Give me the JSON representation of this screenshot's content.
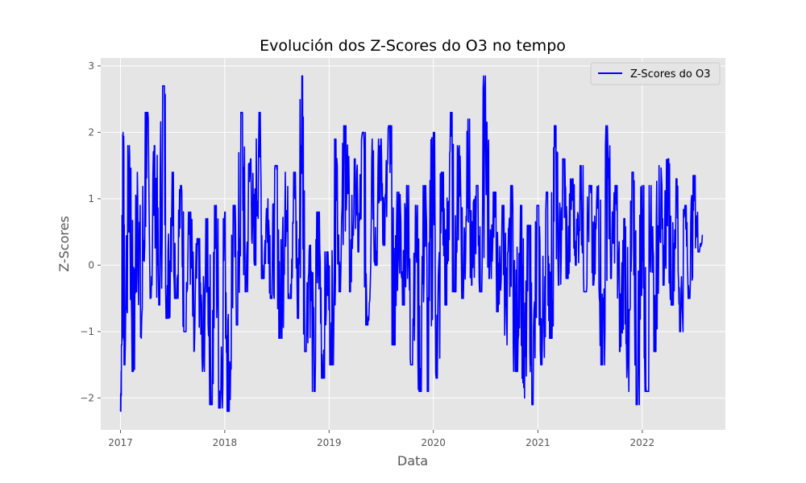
{
  "chart_data": {
    "type": "line",
    "title": "Evolución dos Z-Scores do O3 no tempo",
    "xlabel": "Data",
    "ylabel": "Z-Scores",
    "x_ticks": [
      "2017",
      "2018",
      "2019",
      "2020",
      "2021",
      "2022"
    ],
    "y_ticks": [
      "−2",
      "−1",
      "0",
      "1",
      "2",
      "3"
    ],
    "xlim": [
      "2016-10-24",
      "2022-10-19"
    ],
    "ylim": [
      -2.48,
      3.12
    ],
    "grid": true,
    "legend_position": "top-right",
    "series": [
      {
        "name": "Z-Scores do O3",
        "color": "#0000ff",
        "x_start": "2017-01-01",
        "x_end": "2022-08-01",
        "frequency": "daily (approximate envelope shown)",
        "points": [
          [
            "2017-01-01",
            -2.2
          ],
          [
            "2017-01-05",
            -1.2
          ],
          [
            "2017-01-10",
            2.0
          ],
          [
            "2017-01-15",
            -1.5
          ],
          [
            "2017-02-01",
            1.8
          ],
          [
            "2017-02-15",
            -1.6
          ],
          [
            "2017-03-01",
            1.4
          ],
          [
            "2017-03-15",
            -1.1
          ],
          [
            "2017-04-01",
            2.3
          ],
          [
            "2017-04-15",
            -0.5
          ],
          [
            "2017-05-01",
            1.8
          ],
          [
            "2017-05-15",
            -0.6
          ],
          [
            "2017-06-01",
            2.7
          ],
          [
            "2017-06-15",
            -0.8
          ],
          [
            "2017-07-01",
            1.4
          ],
          [
            "2017-07-15",
            -0.5
          ],
          [
            "2017-08-01",
            1.2
          ],
          [
            "2017-08-15",
            -1.0
          ],
          [
            "2017-09-01",
            0.8
          ],
          [
            "2017-09-15",
            -1.3
          ],
          [
            "2017-10-01",
            0.4
          ],
          [
            "2017-10-15",
            -1.6
          ],
          [
            "2017-11-01",
            0.7
          ],
          [
            "2017-11-15",
            -2.1
          ],
          [
            "2017-12-01",
            0.9
          ],
          [
            "2017-12-15",
            -2.15
          ],
          [
            "2018-01-01",
            0.8
          ],
          [
            "2018-01-15",
            -2.2
          ],
          [
            "2018-02-01",
            0.9
          ],
          [
            "2018-02-15",
            -0.9
          ],
          [
            "2018-03-01",
            2.3
          ],
          [
            "2018-03-15",
            -0.4
          ],
          [
            "2018-04-01",
            1.6
          ],
          [
            "2018-04-15",
            0.0
          ],
          [
            "2018-05-01",
            2.3
          ],
          [
            "2018-05-15",
            -0.2
          ],
          [
            "2018-06-01",
            1.0
          ],
          [
            "2018-06-15",
            -0.5
          ],
          [
            "2018-07-01",
            1.5
          ],
          [
            "2018-07-15",
            -1.1
          ],
          [
            "2018-08-01",
            1.4
          ],
          [
            "2018-08-15",
            -0.5
          ],
          [
            "2018-09-01",
            1.4
          ],
          [
            "2018-09-15",
            -0.8
          ],
          [
            "2018-09-28",
            2.85
          ],
          [
            "2018-10-10",
            -1.3
          ],
          [
            "2018-10-25",
            0.3
          ],
          [
            "2018-11-10",
            -1.9
          ],
          [
            "2018-11-25",
            0.8
          ],
          [
            "2018-12-10",
            -1.7
          ],
          [
            "2018-12-25",
            0.2
          ],
          [
            "2019-01-10",
            -1.5
          ],
          [
            "2019-01-25",
            1.9
          ],
          [
            "2019-02-10",
            -0.4
          ],
          [
            "2019-03-01",
            2.1
          ],
          [
            "2019-03-15",
            -0.4
          ],
          [
            "2019-04-01",
            1.6
          ],
          [
            "2019-04-15",
            0.2
          ],
          [
            "2019-05-01",
            2.0
          ],
          [
            "2019-05-15",
            -0.9
          ],
          [
            "2019-06-01",
            1.9
          ],
          [
            "2019-06-15",
            0.0
          ],
          [
            "2019-07-01",
            1.9
          ],
          [
            "2019-07-15",
            0.3
          ],
          [
            "2019-08-01",
            2.1
          ],
          [
            "2019-08-15",
            -1.2
          ],
          [
            "2019-09-01",
            1.1
          ],
          [
            "2019-09-15",
            -0.6
          ],
          [
            "2019-10-01",
            1.2
          ],
          [
            "2019-10-15",
            -1.5
          ],
          [
            "2019-11-01",
            0.9
          ],
          [
            "2019-11-15",
            -1.9
          ],
          [
            "2019-12-01",
            1.2
          ],
          [
            "2019-12-15",
            -1.9
          ],
          [
            "2020-01-01",
            2.0
          ],
          [
            "2020-01-15",
            -1.7
          ],
          [
            "2020-02-01",
            1.4
          ],
          [
            "2020-02-15",
            -0.6
          ],
          [
            "2020-03-01",
            2.3
          ],
          [
            "2020-03-15",
            -0.4
          ],
          [
            "2020-04-01",
            1.8
          ],
          [
            "2020-04-15",
            -0.5
          ],
          [
            "2020-05-01",
            2.2
          ],
          [
            "2020-05-15",
            -0.3
          ],
          [
            "2020-06-01",
            1.2
          ],
          [
            "2020-06-15",
            -0.4
          ],
          [
            "2020-07-01",
            2.85
          ],
          [
            "2020-07-15",
            -0.2
          ],
          [
            "2020-08-01",
            1.1
          ],
          [
            "2020-08-15",
            -0.7
          ],
          [
            "2020-09-01",
            0.9
          ],
          [
            "2020-09-15",
            -1.2
          ],
          [
            "2020-10-01",
            1.2
          ],
          [
            "2020-10-15",
            -1.6
          ],
          [
            "2020-11-01",
            0.9
          ],
          [
            "2020-11-15",
            -2.0
          ],
          [
            "2020-12-01",
            0.6
          ],
          [
            "2020-12-15",
            -2.1
          ],
          [
            "2021-01-01",
            0.9
          ],
          [
            "2021-01-15",
            -1.5
          ],
          [
            "2021-02-01",
            1.1
          ],
          [
            "2021-02-15",
            -1.1
          ],
          [
            "2021-03-01",
            2.1
          ],
          [
            "2021-03-15",
            -0.3
          ],
          [
            "2021-04-01",
            1.6
          ],
          [
            "2021-04-15",
            -0.2
          ],
          [
            "2021-05-01",
            1.3
          ],
          [
            "2021-05-15",
            0.0
          ],
          [
            "2021-06-01",
            1.5
          ],
          [
            "2021-06-15",
            -0.4
          ],
          [
            "2021-07-01",
            1.2
          ],
          [
            "2021-07-15",
            -0.3
          ],
          [
            "2021-08-01",
            1.2
          ],
          [
            "2021-08-15",
            -1.5
          ],
          [
            "2021-09-01",
            2.1
          ],
          [
            "2021-09-15",
            -0.2
          ],
          [
            "2021-10-01",
            1.2
          ],
          [
            "2021-10-15",
            -1.3
          ],
          [
            "2021-11-01",
            0.7
          ],
          [
            "2021-11-15",
            -1.9
          ],
          [
            "2021-12-01",
            1.4
          ],
          [
            "2021-12-15",
            -2.1
          ],
          [
            "2022-01-01",
            1.2
          ],
          [
            "2022-01-15",
            -1.9
          ],
          [
            "2022-02-01",
            1.2
          ],
          [
            "2022-02-15",
            -1.3
          ],
          [
            "2022-03-01",
            1.5
          ],
          [
            "2022-03-15",
            -0.3
          ],
          [
            "2022-04-01",
            1.6
          ],
          [
            "2022-04-15",
            -0.6
          ],
          [
            "2022-05-01",
            1.3
          ],
          [
            "2022-05-15",
            -1.0
          ],
          [
            "2022-06-01",
            0.9
          ],
          [
            "2022-06-15",
            -0.5
          ],
          [
            "2022-07-01",
            1.35
          ],
          [
            "2022-07-15",
            0.2
          ],
          [
            "2022-08-01",
            0.45
          ]
        ]
      }
    ]
  }
}
